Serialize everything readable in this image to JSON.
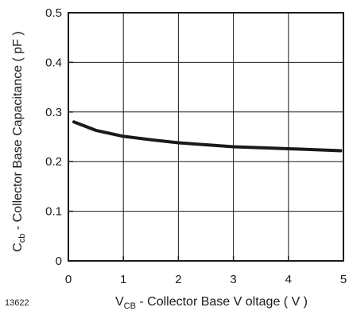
{
  "figure_code": "13622",
  "chart_data": {
    "type": "line",
    "xlabel_main": "V",
    "xlabel_sub": "CB",
    "xlabel_rest": " - Collector Base V oltage ( V )",
    "ylabel_main": "C",
    "ylabel_sub": "cb",
    "ylabel_rest": "  - Collector Base Capacitance ( pF )",
    "xlim": [
      0,
      5
    ],
    "ylim": [
      0,
      0.5
    ],
    "x_ticks": [
      {
        "value": 0,
        "label": "0"
      },
      {
        "value": 1,
        "label": "1"
      },
      {
        "value": 2,
        "label": "2"
      },
      {
        "value": 3,
        "label": "3"
      },
      {
        "value": 4,
        "label": "4"
      },
      {
        "value": 5,
        "label": "5"
      }
    ],
    "y_ticks": [
      {
        "value": 0,
        "label": "0"
      },
      {
        "value": 0.1,
        "label": "0.1"
      },
      {
        "value": 0.2,
        "label": "0.2"
      },
      {
        "value": 0.3,
        "label": "0.3"
      },
      {
        "value": 0.4,
        "label": "0.4"
      },
      {
        "value": 0.5,
        "label": "0.5"
      }
    ],
    "grid": true,
    "line_color": "#1a1a1a",
    "series": [
      {
        "x": [
          0.1,
          0.5,
          1.0,
          1.5,
          2.0,
          2.5,
          3.0,
          3.5,
          4.0,
          4.5,
          4.95
        ],
        "values": [
          0.28,
          0.263,
          0.251,
          0.244,
          0.238,
          0.234,
          0.23,
          0.228,
          0.226,
          0.224,
          0.222
        ]
      }
    ]
  }
}
